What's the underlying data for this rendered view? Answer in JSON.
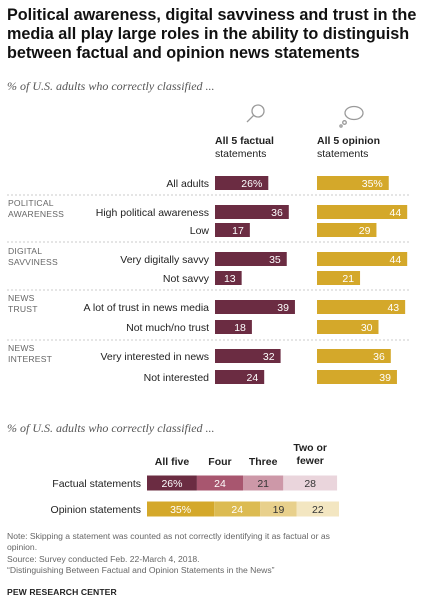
{
  "title": "Political awareness, digital savviness and trust in the media all play large roles in the ability to distinguish between factual and opinion news statements",
  "subtitle_top": "% of U.S. adults who correctly classified ...",
  "subtitle_bottom": "% of U.S. adults who correctly classified ...",
  "icons": {
    "factual": "magnifier-icon",
    "opinion": "thought-cloud-icon"
  },
  "colors": {
    "factual": "#6b2c42",
    "opinion": "#d4a82a",
    "divider": "#bbbbbb"
  },
  "note_lines": [
    "Note: Skipping a statement was counted as not correctly identifying it as factual or as",
    "opinion.",
    "Source: Survey conducted Feb. 22-March 4, 2018.",
    "“Distinguishing Between Factual and Opinion Statements in the News”"
  ],
  "source_label": "PEW RESEARCH CENTER",
  "chart_data": [
    {
      "type": "bar",
      "column_headers": [
        [
          "All 5 factual",
          "statements"
        ],
        [
          "All 5 opinion",
          "statements"
        ]
      ],
      "rows": [
        {
          "group": "",
          "label": "All adults",
          "factual": 26,
          "opinion": 35,
          "factual_text": "26%",
          "opinion_text": "35%"
        },
        {
          "group": "POLITICAL AWARENESS",
          "label": "High political awareness",
          "factual": 36,
          "opinion": 44,
          "factual_text": "36",
          "opinion_text": "44"
        },
        {
          "group": "POLITICAL AWARENESS",
          "label": "Low",
          "factual": 17,
          "opinion": 29,
          "factual_text": "17",
          "opinion_text": "29"
        },
        {
          "group": "DIGITAL SAVVINESS",
          "label": "Very digitally savvy",
          "factual": 35,
          "opinion": 44,
          "factual_text": "35",
          "opinion_text": "44"
        },
        {
          "group": "DIGITAL SAVVINESS",
          "label": "Not savvy",
          "factual": 13,
          "opinion": 21,
          "factual_text": "13",
          "opinion_text": "21"
        },
        {
          "group": "NEWS TRUST",
          "label": "A lot of trust in news media",
          "factual": 39,
          "opinion": 43,
          "factual_text": "39",
          "opinion_text": "43"
        },
        {
          "group": "NEWS TRUST",
          "label": "Not much/no trust",
          "factual": 18,
          "opinion": 30,
          "factual_text": "18",
          "opinion_text": "30"
        },
        {
          "group": "NEWS INTEREST",
          "label": "Very interested in news",
          "factual": 32,
          "opinion": 36,
          "factual_text": "32",
          "opinion_text": "36"
        },
        {
          "group": "NEWS INTEREST",
          "label": "Not interested",
          "factual": 24,
          "opinion": 39,
          "factual_text": "24",
          "opinion_text": "39"
        }
      ],
      "group_labels": [
        [
          "POLITICAL",
          "AWARENESS"
        ],
        [
          "DIGITAL",
          "SAVVINESS"
        ],
        [
          "NEWS",
          "TRUST"
        ],
        [
          "NEWS",
          "INTEREST"
        ]
      ]
    },
    {
      "type": "bar",
      "stacked": true,
      "categories": [
        "Factual statements",
        "Opinion statements"
      ],
      "segment_headers": [
        [
          "All five"
        ],
        [
          "Four"
        ],
        [
          "Three"
        ],
        [
          "Two or",
          "fewer"
        ]
      ],
      "series": [
        {
          "name": "All five",
          "values": [
            26,
            35
          ],
          "labels": [
            "26%",
            "35%"
          ],
          "colors": [
            "#6b2c42",
            "#d4a82a"
          ]
        },
        {
          "name": "Four",
          "values": [
            24,
            24
          ],
          "labels": [
            "24",
            "24"
          ],
          "colors": [
            "#a8566f",
            "#dcbb52"
          ]
        },
        {
          "name": "Three",
          "values": [
            21,
            19
          ],
          "labels": [
            "21",
            "19"
          ],
          "colors": [
            "#cd98a8",
            "#e8d08c"
          ]
        },
        {
          "name": "Two or fewer",
          "values": [
            28,
            22
          ],
          "labels": [
            "28",
            "22"
          ],
          "colors": [
            "#ead5dc",
            "#f3e6c1"
          ]
        }
      ]
    }
  ]
}
